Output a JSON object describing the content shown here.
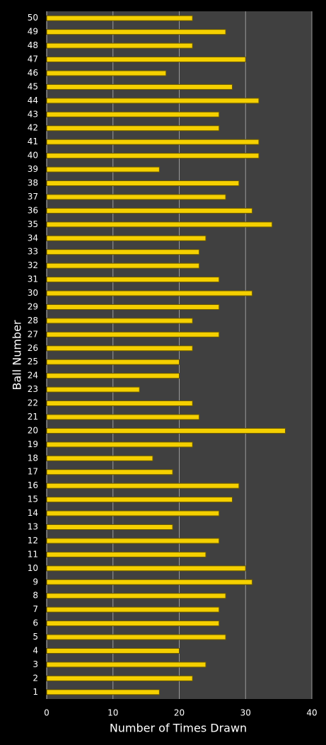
{
  "chart_data": {
    "type": "barh",
    "x_label": "Number of Times Drawn",
    "y_label": "Ball Number",
    "categories": [
      "1",
      "2",
      "3",
      "4",
      "5",
      "6",
      "7",
      "8",
      "9",
      "10",
      "11",
      "12",
      "13",
      "14",
      "15",
      "16",
      "17",
      "18",
      "19",
      "20",
      "21",
      "22",
      "23",
      "24",
      "25",
      "26",
      "27",
      "28",
      "29",
      "30",
      "31",
      "32",
      "33",
      "34",
      "35",
      "36",
      "37",
      "38",
      "39",
      "40",
      "41",
      "42",
      "43",
      "44",
      "45",
      "46",
      "47",
      "48",
      "49",
      "50"
    ],
    "values": [
      17,
      22,
      24,
      20,
      27,
      26,
      26,
      27,
      31,
      30,
      24,
      26,
      19,
      26,
      28,
      29,
      19,
      16,
      22,
      36,
      23,
      22,
      14,
      20,
      20,
      22,
      26,
      22,
      26,
      31,
      26,
      23,
      23,
      24,
      34,
      31,
      27,
      29,
      17,
      32,
      32,
      26,
      26,
      32,
      28,
      18,
      30,
      22,
      27,
      22
    ],
    "color": "#f5d000",
    "xlim": [
      0,
      40
    ],
    "xticks": [
      0,
      10,
      20,
      30,
      40
    ],
    "grid": true
  }
}
